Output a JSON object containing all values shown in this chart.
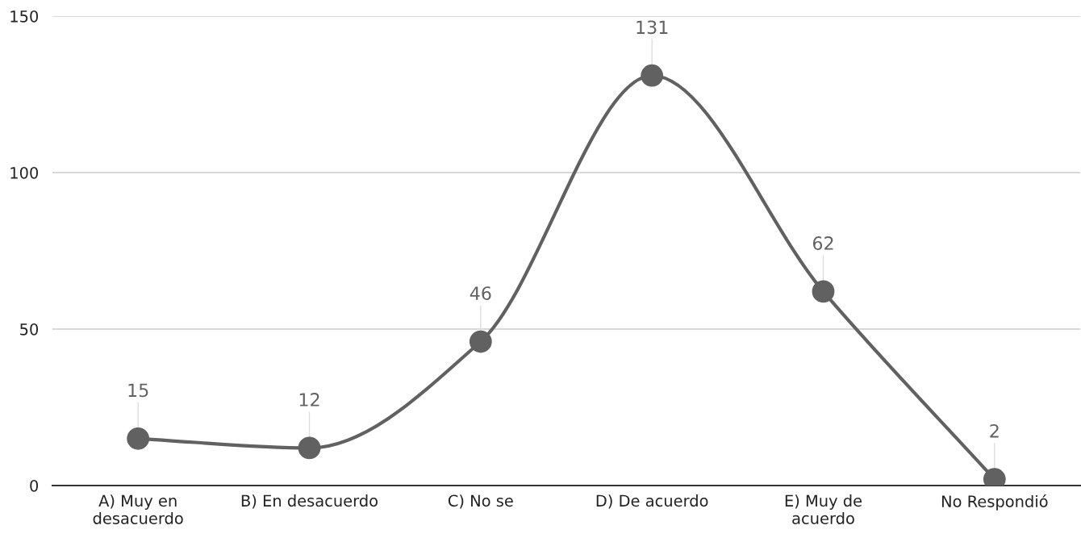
{
  "chart_data": {
    "type": "line",
    "categories": [
      "A) Muy en\ndesacuerdo",
      "B) En desacuerdo",
      "C) No se",
      "D) De acuerdo",
      "E) Muy de\nacuerdo",
      "No Respondió"
    ],
    "series": [
      {
        "color": "#616161",
        "values": [
          15,
          12,
          46,
          131,
          62,
          2
        ]
      }
    ],
    "ylim": [
      0,
      150
    ],
    "yticks": [
      0,
      50,
      100,
      150
    ],
    "grid": "y",
    "marker": "circle",
    "line_style": "solid",
    "data_labels": true
  }
}
